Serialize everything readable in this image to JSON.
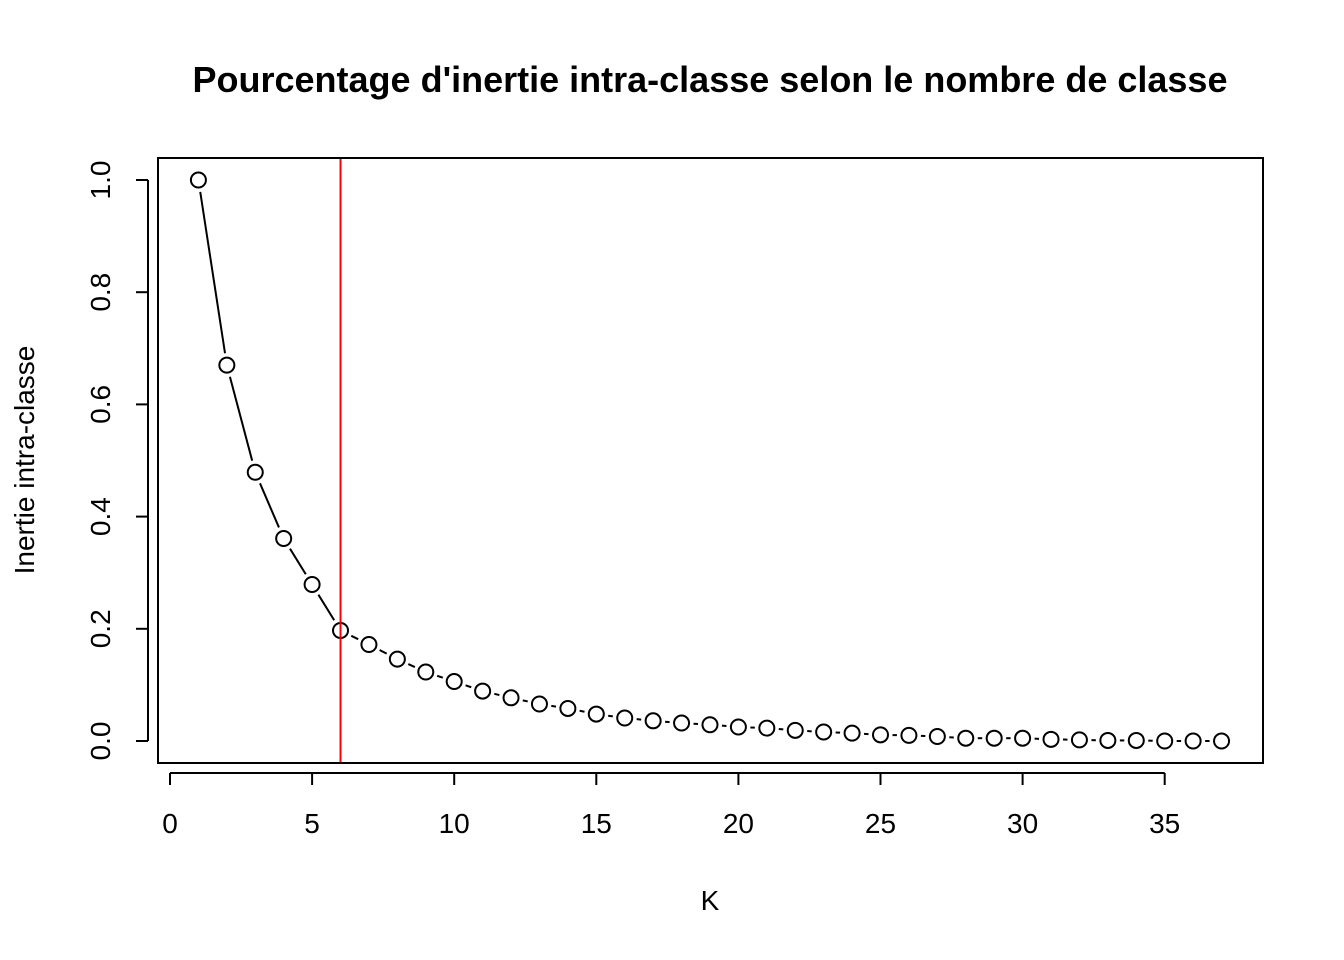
{
  "chart_data": {
    "type": "line",
    "title": "Pourcentage d'inertie intra-classe selon le nombre de classe",
    "xlabel": "K",
    "ylabel": "Inertie intra-classe",
    "xlim": [
      0,
      37
    ],
    "ylim": [
      0,
      1
    ],
    "xticks": [
      "0",
      "5",
      "10",
      "15",
      "20",
      "25",
      "30",
      "35"
    ],
    "yticks": [
      "0.0",
      "0.2",
      "0.4",
      "0.6",
      "0.8",
      "1.0"
    ],
    "x": [
      1,
      2,
      3,
      4,
      5,
      6,
      7,
      8,
      9,
      10,
      11,
      12,
      13,
      14,
      15,
      16,
      17,
      18,
      19,
      20,
      21,
      22,
      23,
      24,
      25,
      26,
      27,
      28,
      29,
      30,
      31,
      32,
      33,
      34,
      35,
      36,
      37
    ],
    "y": [
      1.0,
      0.67,
      0.479,
      0.361,
      0.279,
      0.197,
      0.172,
      0.146,
      0.123,
      0.106,
      0.089,
      0.077,
      0.066,
      0.058,
      0.048,
      0.041,
      0.036,
      0.032,
      0.029,
      0.025,
      0.023,
      0.019,
      0.016,
      0.014,
      0.011,
      0.01,
      0.008,
      0.005,
      0.005,
      0.005,
      0.003,
      0.002,
      0.001,
      0.001,
      0.0,
      0.0,
      0.0
    ],
    "series_style": "points connected by line segments (type b)",
    "vline": {
      "x": 6,
      "color": "#ff0000"
    },
    "point_color": "#000000",
    "grid": false,
    "legend": "none"
  }
}
